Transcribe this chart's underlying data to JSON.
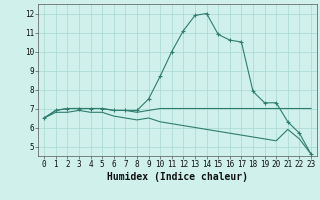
{
  "title": "",
  "xlabel": "Humidex (Indice chaleur)",
  "x": [
    0,
    1,
    2,
    3,
    4,
    5,
    6,
    7,
    8,
    9,
    10,
    11,
    12,
    13,
    14,
    15,
    16,
    17,
    18,
    19,
    20,
    21,
    22,
    23
  ],
  "line1": [
    6.5,
    6.9,
    7.0,
    7.0,
    7.0,
    7.0,
    6.9,
    6.9,
    6.9,
    7.5,
    8.7,
    10.0,
    11.1,
    11.9,
    12.0,
    10.9,
    10.6,
    10.5,
    7.9,
    7.3,
    7.3,
    6.3,
    5.7,
    4.6
  ],
  "line2": [
    6.5,
    6.9,
    7.0,
    7.0,
    7.0,
    7.0,
    6.9,
    6.9,
    6.8,
    6.9,
    7.0,
    7.0,
    7.0,
    7.0,
    7.0,
    7.0,
    7.0,
    7.0,
    7.0,
    7.0,
    7.0,
    7.0,
    7.0,
    7.0
  ],
  "line3": [
    6.5,
    6.8,
    6.8,
    6.9,
    6.8,
    6.8,
    6.6,
    6.5,
    6.4,
    6.5,
    6.3,
    6.2,
    6.1,
    6.0,
    5.9,
    5.8,
    5.7,
    5.6,
    5.5,
    5.4,
    5.3,
    5.9,
    5.4,
    4.6
  ],
  "line_color": "#2e7d6e",
  "bg_color": "#cff0eb",
  "grid_color": "#a8d8d0",
  "ylim": [
    4.5,
    12.5
  ],
  "xlim": [
    -0.5,
    23.5
  ],
  "yticks": [
    5,
    6,
    7,
    8,
    9,
    10,
    11,
    12
  ],
  "xticks": [
    0,
    1,
    2,
    3,
    4,
    5,
    6,
    7,
    8,
    9,
    10,
    11,
    12,
    13,
    14,
    15,
    16,
    17,
    18,
    19,
    20,
    21,
    22,
    23
  ],
  "tick_fontsize": 5.5,
  "xlabel_fontsize": 7.0
}
